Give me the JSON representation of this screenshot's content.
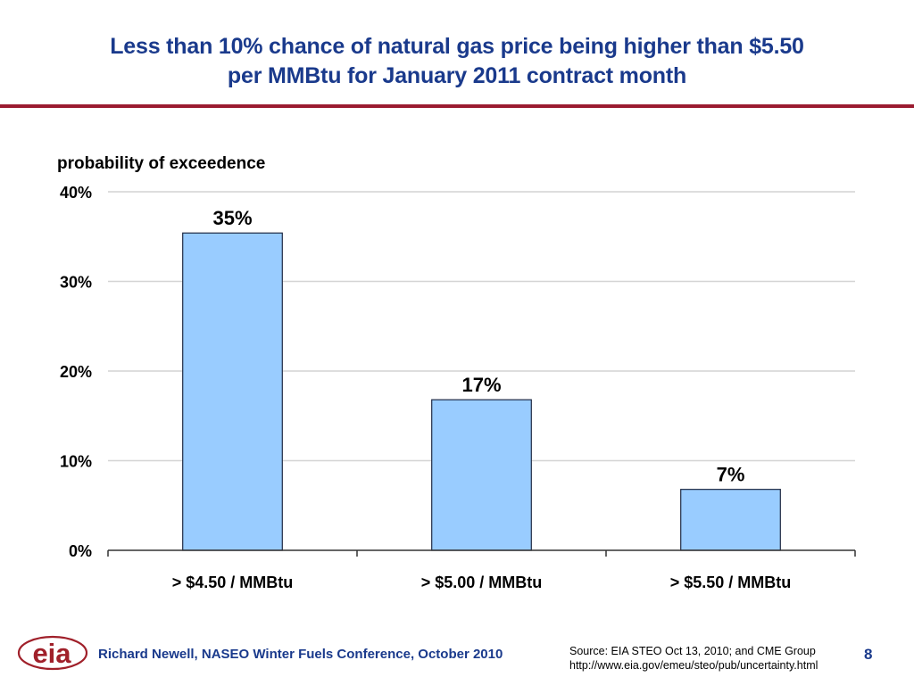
{
  "slide": {
    "title_line1": "Less than 10% chance of natural gas price being higher than $5.50",
    "title_line2": "per MMBtu for January 2011 contract month",
    "footer": "Richard Newell, NASEO Winter Fuels Conference, October 2010",
    "source_line1": "Source: EIA STEO Oct 13, 2010; and CME Group",
    "source_line2": "http://www.eia.gov/emeu/steo/pub/uncertainty.html",
    "page_number": "8",
    "logo_text": "eia",
    "colors": {
      "title": "#1a3a8c",
      "rule": "#9b1b30",
      "bar_fill": "#99ccff",
      "bar_stroke": "#1f2a44",
      "logo": "#a0202a"
    }
  },
  "chart_data": {
    "type": "bar",
    "title": "",
    "ylabel": "probability of exceedence",
    "xlabel": "",
    "categories": [
      "> $4.50 / MMBtu",
      "> $5.00 / MMBtu",
      "> $5.50 / MMBtu"
    ],
    "values": [
      35.4,
      16.8,
      6.8
    ],
    "data_labels": [
      "35%",
      "17%",
      "7%"
    ],
    "ylim": [
      0,
      40
    ],
    "yticks": [
      0,
      10,
      20,
      30,
      40
    ],
    "ytick_labels": [
      "0%",
      "10%",
      "20%",
      "30%",
      "40%"
    ],
    "grid": true,
    "legend": "none"
  }
}
